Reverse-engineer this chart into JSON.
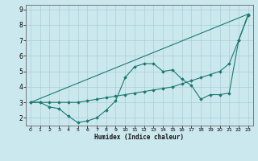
{
  "xlabel": "Humidex (Indice chaleur)",
  "bg_color": "#cce8ef",
  "grid_color": "#aacdd6",
  "line_color": "#1a7a6e",
  "xlim": [
    -0.5,
    23.5
  ],
  "ylim": [
    1.5,
    9.3
  ],
  "xticks": [
    0,
    1,
    2,
    3,
    4,
    5,
    6,
    7,
    8,
    9,
    10,
    11,
    12,
    13,
    14,
    15,
    16,
    17,
    18,
    19,
    20,
    21,
    22,
    23
  ],
  "yticks": [
    2,
    3,
    4,
    5,
    6,
    7,
    8,
    9
  ],
  "line1_x": [
    0,
    1,
    2,
    3,
    4,
    5,
    6,
    7,
    8,
    9,
    10,
    11,
    12,
    13,
    14,
    15,
    16,
    17,
    18,
    19,
    20,
    21,
    22,
    23
  ],
  "line1_y": [
    3.0,
    3.0,
    2.7,
    2.6,
    2.1,
    1.7,
    1.8,
    2.0,
    2.5,
    3.1,
    4.6,
    5.3,
    5.5,
    5.5,
    5.0,
    5.1,
    4.5,
    4.1,
    3.2,
    3.5,
    3.5,
    3.6,
    7.0,
    8.6
  ],
  "line2_x": [
    0,
    1,
    2,
    3,
    4,
    5,
    6,
    7,
    8,
    9,
    10,
    11,
    12,
    13,
    14,
    15,
    16,
    17,
    18,
    19,
    20,
    21,
    22,
    23
  ],
  "line2_y": [
    3.0,
    3.0,
    3.0,
    3.0,
    3.0,
    3.0,
    3.1,
    3.2,
    3.3,
    3.4,
    3.5,
    3.6,
    3.7,
    3.8,
    3.9,
    4.0,
    4.2,
    4.4,
    4.6,
    4.8,
    5.0,
    5.5,
    7.0,
    8.7
  ],
  "line3_x": [
    0,
    23
  ],
  "line3_y": [
    3.0,
    8.7
  ]
}
